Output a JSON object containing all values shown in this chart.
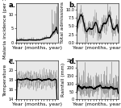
{
  "panels": [
    "a.",
    "b.",
    "c.",
    "d."
  ],
  "n_points": 360,
  "seed": 42,
  "panel_a": {
    "base": 0.5,
    "ylabel": "Malaria incidence (per 1000)",
    "ymin": 0,
    "ymax": 14
  },
  "panel_b": {
    "base": 5.0,
    "ylabel": "Total admissions",
    "ymin": 0,
    "ymax": 12
  },
  "panel_c": {
    "base": 18.0,
    "ylabel": "Temperature",
    "ymin": 14,
    "ymax": 22
  },
  "panel_d": {
    "base": 60.0,
    "ylabel": "Rainfall (mm)",
    "ymin": 0,
    "ymax": 250
  },
  "xlabel": "Year (months, year)",
  "moving_avg_window": 25,
  "bg_color": "#e8e8e8",
  "plot_color": "#888888",
  "ma_color": "#000000",
  "label_fontsize": 4.5,
  "tick_fontsize": 3.5,
  "panel_label_fontsize": 6
}
